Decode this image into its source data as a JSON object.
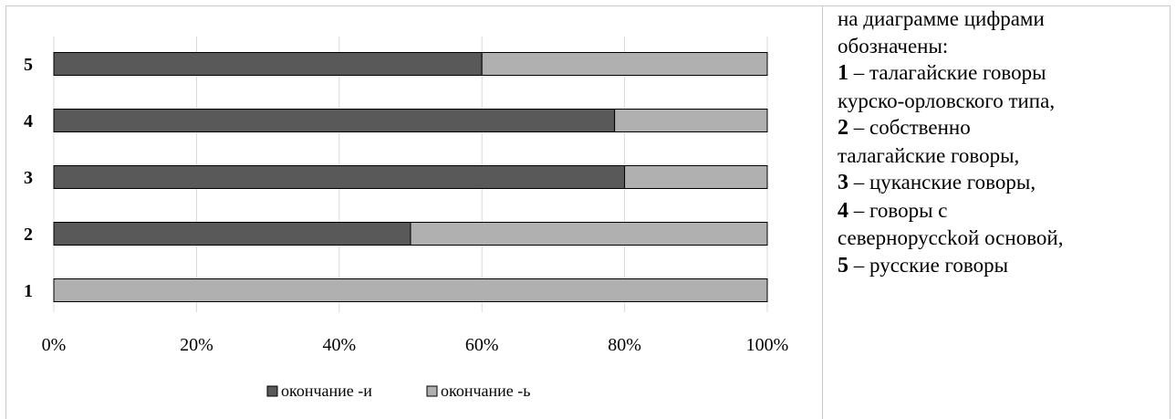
{
  "chart_data": {
    "type": "bar",
    "orientation": "horizontal",
    "stacked": "percent",
    "categories": [
      "1",
      "2",
      "3",
      "4",
      "5"
    ],
    "series": [
      {
        "name": "окончание -и",
        "values": [
          0,
          50,
          80,
          78.6,
          60
        ],
        "color": "#595959"
      },
      {
        "name": "окончание -ь",
        "values": [
          100,
          50,
          20,
          21.4,
          40
        ],
        "color": "#b0b0b0"
      }
    ],
    "x_ticks": [
      "0%",
      "20%",
      "40%",
      "60%",
      "80%",
      "100%"
    ],
    "xlim": [
      0,
      100
    ],
    "grid": "vertical",
    "legend_position": "bottom"
  },
  "notes": {
    "intro": "на диаграмме цифрами обозначены:",
    "items": [
      {
        "num": "1",
        "text": "– талагайские говоры курско-орловского типа,"
      },
      {
        "num": "2",
        "text": "– собственно талагайские говоры,"
      },
      {
        "num": "3",
        "text": "– цуканские говоры,"
      },
      {
        "num": "4",
        "text": "– говоры с северноруссkой основой,"
      },
      {
        "num": "5",
        "text": "– русские говоры"
      }
    ]
  }
}
